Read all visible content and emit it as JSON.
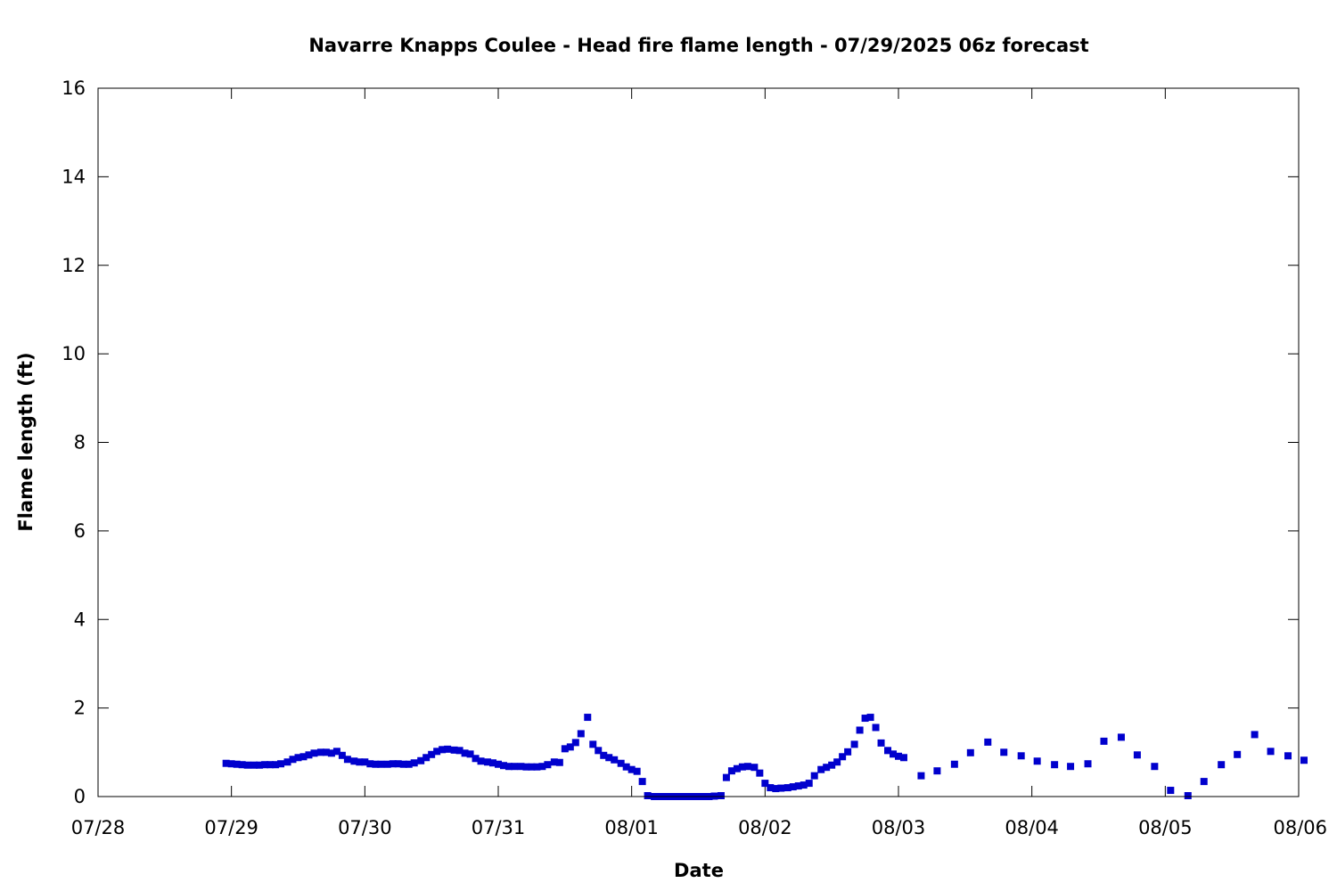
{
  "chart_data": {
    "type": "scatter",
    "title": "Navarre Knapps Coulee - Head fire flame length - 07/29/2025 06z forecast",
    "xlabel": "Date",
    "ylabel": "Flame length (ft)",
    "x_ticks": [
      "07/28",
      "07/29",
      "07/30",
      "07/31",
      "08/01",
      "08/02",
      "08/03",
      "08/04",
      "08/05",
      "08/06"
    ],
    "x_range_days": [
      0,
      9
    ],
    "ylim": [
      0,
      16
    ],
    "y_ticks": [
      0,
      2,
      4,
      6,
      8,
      10,
      12,
      14,
      16
    ],
    "grid": false,
    "legend": "none",
    "marker_color": "#0000cd",
    "series": [
      {
        "points": [
          [
            0.96,
            0.75
          ],
          [
            1.0,
            0.74
          ],
          [
            1.04,
            0.73
          ],
          [
            1.08,
            0.72
          ],
          [
            1.12,
            0.71
          ],
          [
            1.17,
            0.71
          ],
          [
            1.21,
            0.71
          ],
          [
            1.25,
            0.72
          ],
          [
            1.29,
            0.72
          ],
          [
            1.33,
            0.72
          ],
          [
            1.37,
            0.74
          ],
          [
            1.42,
            0.78
          ],
          [
            1.46,
            0.84
          ],
          [
            1.5,
            0.88
          ],
          [
            1.54,
            0.9
          ],
          [
            1.58,
            0.94
          ],
          [
            1.62,
            0.98
          ],
          [
            1.67,
            1.0
          ],
          [
            1.71,
            1.0
          ],
          [
            1.75,
            0.98
          ],
          [
            1.79,
            1.02
          ],
          [
            1.83,
            0.93
          ],
          [
            1.87,
            0.84
          ],
          [
            1.92,
            0.8
          ],
          [
            1.96,
            0.78
          ],
          [
            2.0,
            0.78
          ],
          [
            2.04,
            0.74
          ],
          [
            2.08,
            0.73
          ],
          [
            2.12,
            0.73
          ],
          [
            2.17,
            0.73
          ],
          [
            2.21,
            0.74
          ],
          [
            2.25,
            0.74
          ],
          [
            2.29,
            0.73
          ],
          [
            2.33,
            0.73
          ],
          [
            2.37,
            0.76
          ],
          [
            2.42,
            0.81
          ],
          [
            2.46,
            0.88
          ],
          [
            2.5,
            0.95
          ],
          [
            2.54,
            1.02
          ],
          [
            2.58,
            1.06
          ],
          [
            2.62,
            1.07
          ],
          [
            2.67,
            1.05
          ],
          [
            2.71,
            1.04
          ],
          [
            2.75,
            0.98
          ],
          [
            2.79,
            0.96
          ],
          [
            2.83,
            0.86
          ],
          [
            2.87,
            0.8
          ],
          [
            2.92,
            0.78
          ],
          [
            2.96,
            0.76
          ],
          [
            3.0,
            0.73
          ],
          [
            3.04,
            0.7
          ],
          [
            3.08,
            0.68
          ],
          [
            3.12,
            0.68
          ],
          [
            3.17,
            0.68
          ],
          [
            3.21,
            0.67
          ],
          [
            3.25,
            0.67
          ],
          [
            3.29,
            0.67
          ],
          [
            3.33,
            0.68
          ],
          [
            3.37,
            0.72
          ],
          [
            3.42,
            0.78
          ],
          [
            3.46,
            0.77
          ],
          [
            3.5,
            1.08
          ],
          [
            3.54,
            1.12
          ],
          [
            3.58,
            1.22
          ],
          [
            3.62,
            1.42
          ],
          [
            3.67,
            1.79
          ],
          [
            3.71,
            1.18
          ],
          [
            3.75,
            1.04
          ],
          [
            3.79,
            0.93
          ],
          [
            3.83,
            0.88
          ],
          [
            3.87,
            0.83
          ],
          [
            3.92,
            0.75
          ],
          [
            3.96,
            0.67
          ],
          [
            4.0,
            0.61
          ],
          [
            4.04,
            0.57
          ],
          [
            4.08,
            0.34
          ],
          [
            4.12,
            0.02
          ],
          [
            4.17,
            0.0
          ],
          [
            4.21,
            0.0
          ],
          [
            4.25,
            0.0
          ],
          [
            4.29,
            0.0
          ],
          [
            4.33,
            0.0
          ],
          [
            4.37,
            0.0
          ],
          [
            4.42,
            0.0
          ],
          [
            4.46,
            0.0
          ],
          [
            4.5,
            0.0
          ],
          [
            4.54,
            0.0
          ],
          [
            4.58,
            0.0
          ],
          [
            4.62,
            0.01
          ],
          [
            4.67,
            0.02
          ],
          [
            4.71,
            0.43
          ],
          [
            4.75,
            0.58
          ],
          [
            4.79,
            0.63
          ],
          [
            4.83,
            0.67
          ],
          [
            4.87,
            0.68
          ],
          [
            4.92,
            0.66
          ],
          [
            4.96,
            0.53
          ],
          [
            5.0,
            0.3
          ],
          [
            5.04,
            0.2
          ],
          [
            5.08,
            0.18
          ],
          [
            5.12,
            0.19
          ],
          [
            5.17,
            0.2
          ],
          [
            5.21,
            0.22
          ],
          [
            5.25,
            0.24
          ],
          [
            5.29,
            0.26
          ],
          [
            5.33,
            0.3
          ],
          [
            5.37,
            0.47
          ],
          [
            5.42,
            0.61
          ],
          [
            5.46,
            0.66
          ],
          [
            5.5,
            0.71
          ],
          [
            5.54,
            0.78
          ],
          [
            5.58,
            0.9
          ],
          [
            5.62,
            1.01
          ],
          [
            5.67,
            1.18
          ],
          [
            5.71,
            1.5
          ],
          [
            5.75,
            1.77
          ],
          [
            5.79,
            1.79
          ],
          [
            5.83,
            1.56
          ],
          [
            5.87,
            1.21
          ],
          [
            5.92,
            1.04
          ],
          [
            5.96,
            0.96
          ],
          [
            6.0,
            0.91
          ],
          [
            6.04,
            0.88
          ],
          [
            6.17,
            0.47
          ],
          [
            6.29,
            0.58
          ],
          [
            6.42,
            0.73
          ],
          [
            6.54,
            0.99
          ],
          [
            6.67,
            1.23
          ],
          [
            6.79,
            1.0
          ],
          [
            6.92,
            0.92
          ],
          [
            7.04,
            0.8
          ],
          [
            7.17,
            0.72
          ],
          [
            7.29,
            0.68
          ],
          [
            7.42,
            0.74
          ],
          [
            7.54,
            1.25
          ],
          [
            7.67,
            1.34
          ],
          [
            7.79,
            0.94
          ],
          [
            7.92,
            0.68
          ],
          [
            8.04,
            0.14
          ],
          [
            8.17,
            0.02
          ],
          [
            8.29,
            0.34
          ],
          [
            8.42,
            0.72
          ],
          [
            8.54,
            0.95
          ],
          [
            8.67,
            1.4
          ],
          [
            8.79,
            1.02
          ],
          [
            8.92,
            0.92
          ],
          [
            9.04,
            0.82
          ]
        ]
      }
    ]
  }
}
